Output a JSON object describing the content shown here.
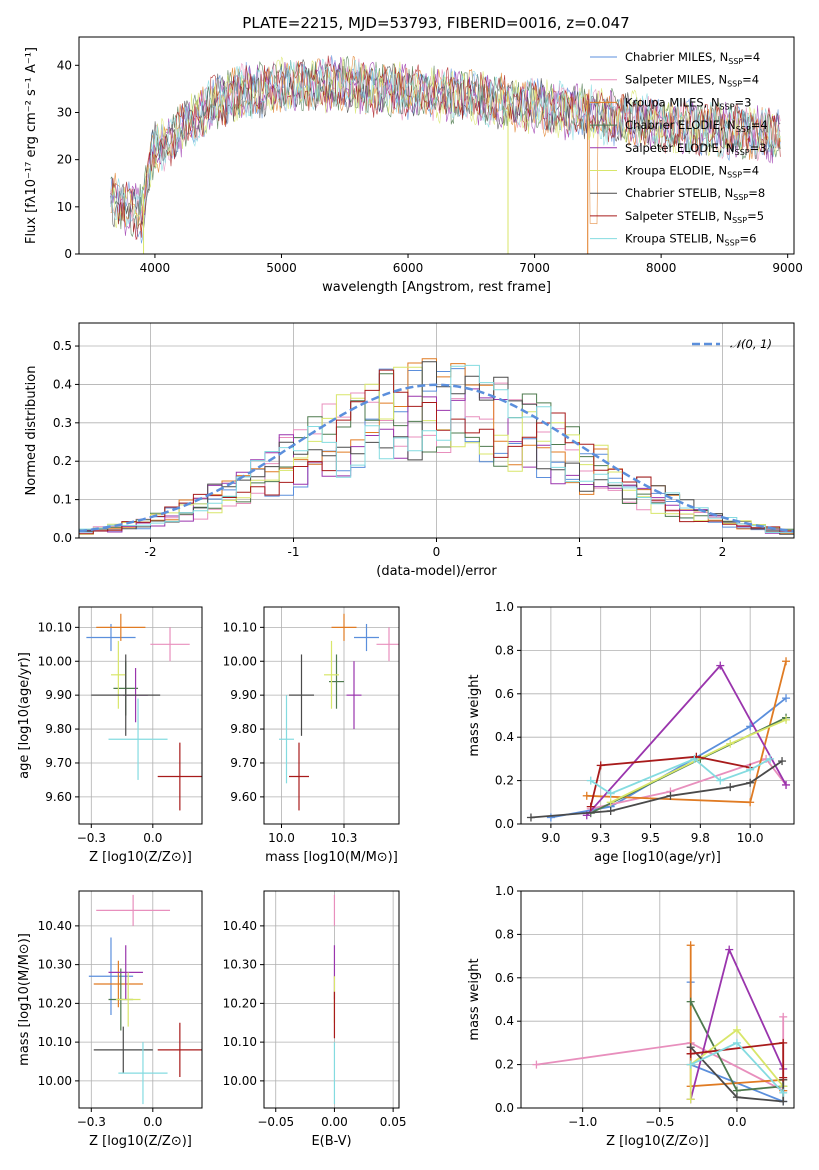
{
  "colors": {
    "Chabrier MILES": "#5b8fdc",
    "Salpeter MILES": "#e88fbd",
    "Kroupa MILES": "#e07b23",
    "Chabrier ELODIE": "#4e7a4e",
    "Salpeter ELODIE": "#9a35ad",
    "Kroupa ELODIE": "#d8e66a",
    "Chabrier STELIB": "#4a4a4a",
    "Salpeter STELIB": "#a81b1b",
    "Kroupa STELIB": "#84dbe0"
  },
  "chart_data": [
    {
      "id": "spectrum",
      "type": "line",
      "title": "PLATE=2215, MJD=53793, FIBERID=0016, z=0.047",
      "xlabel": "wavelength [Angstrom, rest frame]",
      "ylabel": "Flux [fλ10⁻¹⁷ erg cm⁻² s⁻¹ A⁻¹]",
      "xlim": [
        3400,
        9050
      ],
      "ylim": [
        0,
        46
      ],
      "xticks": [
        4000,
        5000,
        6000,
        7000,
        8000,
        9000
      ],
      "yticks": [
        0,
        10,
        20,
        30,
        40
      ],
      "grid": false,
      "legend_position": "top-right",
      "continuum": {
        "x": [
          3650,
          3700,
          3800,
          3900,
          3950,
          4000,
          4100,
          4200,
          4300,
          4400,
          4500,
          4600,
          4700,
          4800,
          4900,
          5000,
          5100,
          5200,
          5300,
          5400,
          5500,
          5600,
          5800,
          6000,
          6200,
          6400,
          6600,
          6800,
          7000,
          7200,
          7400,
          7500,
          7600,
          7800,
          8000,
          8200,
          8400,
          8600,
          8800,
          9000
        ],
        "y": [
          16,
          13,
          12,
          11,
          20,
          25,
          26,
          29,
          31,
          33,
          35,
          36,
          37,
          37,
          37.5,
          38,
          38.5,
          38,
          38.5,
          38.5,
          38.5,
          38,
          37.5,
          37,
          36.5,
          36,
          35.5,
          34.5,
          34,
          33,
          32.5,
          32,
          31.5,
          31,
          30,
          29.5,
          29,
          28.5,
          28,
          27.5
        ]
      },
      "dropouts": [
        {
          "series": "Kroupa ELODIE",
          "x": 3910,
          "y": 0
        },
        {
          "series": "Kroupa ELODIE",
          "x": 6790,
          "y": 0
        },
        {
          "series": "Kroupa MILES",
          "x": 7420,
          "y": 0
        }
      ],
      "series": [
        {
          "name": "Chabrier MILES, N_SSP=4",
          "label": "Chabrier MILES",
          "nssp": "4"
        },
        {
          "name": "Salpeter MILES, N_SSP=4",
          "label": "Salpeter MILES",
          "nssp": "4"
        },
        {
          "name": "Kroupa MILES, N_SSP=3",
          "label": "Kroupa MILES",
          "nssp": "3"
        },
        {
          "name": "Chabrier ELODIE, N_SSP=4",
          "label": "Chabrier ELODIE",
          "nssp": "4"
        },
        {
          "name": "Salpeter ELODIE, N_SSP=3",
          "label": "Salpeter ELODIE",
          "nssp": "3"
        },
        {
          "name": "Kroupa ELODIE, N_SSP=4",
          "label": "Kroupa ELODIE",
          "nssp": "4"
        },
        {
          "name": "Chabrier STELIB, N_SSP=8",
          "label": "Chabrier STELIB",
          "nssp": "8"
        },
        {
          "name": "Salpeter STELIB, N_SSP=5",
          "label": "Salpeter STELIB",
          "nssp": "5"
        },
        {
          "name": "Kroupa STELIB, N_SSP=6",
          "label": "Kroupa STELIB",
          "nssp": "6"
        }
      ]
    },
    {
      "id": "residuals",
      "type": "histogram",
      "xlabel": "(data-model)/error",
      "ylabel": "Normed distribution",
      "xlim": [
        -2.5,
        2.5
      ],
      "ylim": [
        0,
        0.56
      ],
      "xticks": [
        -2,
        -1,
        0,
        1,
        2
      ],
      "yticks": [
        0.0,
        0.1,
        0.2,
        0.3,
        0.4,
        0.5
      ],
      "grid": true,
      "legend_position": "top-right",
      "legend": "𝒩(0, 1)",
      "bin_width": 0.1
    },
    {
      "id": "z-age",
      "type": "errorbar",
      "xlabel": "Z [log10(Z/Z⊙)]",
      "ylabel": "age  [log10(age/yr)]",
      "xlim": [
        -0.3,
        0.2
      ],
      "ylim": [
        9.52,
        10.16
      ],
      "xticks": [
        -0.25,
        0.0
      ],
      "yticks": [
        9.6,
        9.7,
        9.8,
        9.9,
        10.0,
        10.1
      ],
      "grid": true,
      "points": [
        {
          "series": "Chabrier MILES",
          "x": -0.17,
          "xerr": 0.1,
          "y": 10.07,
          "yerr": 0.04
        },
        {
          "series": "Salpeter MILES",
          "x": 0.07,
          "xerr": 0.08,
          "y": 10.05,
          "yerr": 0.05
        },
        {
          "series": "Kroupa MILES",
          "x": -0.13,
          "xerr": 0.1,
          "y": 10.1,
          "yerr": 0.04
        },
        {
          "series": "Chabrier ELODIE",
          "x": -0.11,
          "xerr": 0.05,
          "y": 9.92,
          "yerr": 0.08
        },
        {
          "series": "Salpeter ELODIE",
          "x": -0.07,
          "xerr": 0.05,
          "y": 9.9,
          "yerr": 0.08
        },
        {
          "series": "Kroupa ELODIE",
          "x": -0.14,
          "xerr": 0.03,
          "y": 9.96,
          "yerr": 0.1
        },
        {
          "series": "Chabrier STELIB",
          "x": -0.11,
          "xerr": 0.14,
          "y": 9.9,
          "yerr": 0.12
        },
        {
          "series": "Salpeter STELIB",
          "x": 0.11,
          "xerr": 0.09,
          "y": 9.66,
          "yerr": 0.1
        },
        {
          "series": "Kroupa STELIB",
          "x": -0.06,
          "xerr": 0.12,
          "y": 9.77,
          "yerr": 0.12
        }
      ]
    },
    {
      "id": "mass-age",
      "type": "errorbar",
      "xlabel": "mass [log10(M/M⊙)]",
      "ylabel": "",
      "xlim": [
        9.93,
        10.47
      ],
      "ylim": [
        9.52,
        10.16
      ],
      "xticks": [
        10.0,
        10.25
      ],
      "yticks": [
        9.6,
        9.7,
        9.8,
        9.9,
        10.0,
        10.1
      ],
      "grid": true,
      "points": [
        {
          "series": "Chabrier MILES",
          "x": 10.34,
          "xerr": 0.05,
          "y": 10.07,
          "yerr": 0.04
        },
        {
          "series": "Salpeter MILES",
          "x": 10.43,
          "xerr": 0.05,
          "y": 10.05,
          "yerr": 0.05
        },
        {
          "series": "Kroupa MILES",
          "x": 10.25,
          "xerr": 0.05,
          "y": 10.1,
          "yerr": 0.04
        },
        {
          "series": "Chabrier ELODIE",
          "x": 10.22,
          "xerr": 0.03,
          "y": 9.94,
          "yerr": 0.08
        },
        {
          "series": "Salpeter ELODIE",
          "x": 10.29,
          "xerr": 0.03,
          "y": 9.9,
          "yerr": 0.1
        },
        {
          "series": "Kroupa ELODIE",
          "x": 10.2,
          "xerr": 0.03,
          "y": 9.96,
          "yerr": 0.1
        },
        {
          "series": "Chabrier STELIB",
          "x": 10.08,
          "xerr": 0.05,
          "y": 9.9,
          "yerr": 0.12
        },
        {
          "series": "Salpeter STELIB",
          "x": 10.07,
          "xerr": 0.04,
          "y": 9.66,
          "yerr": 0.1
        },
        {
          "series": "Kroupa STELIB",
          "x": 10.02,
          "xerr": 0.03,
          "y": 9.77,
          "yerr": 0.13
        }
      ]
    },
    {
      "id": "age-weight",
      "type": "line",
      "xlabel": "age  [log10(age/yr)]",
      "ylabel": "mass weight",
      "xlim": [
        8.85,
        10.22
      ],
      "ylim": [
        0,
        1
      ],
      "xticks": [
        9.0,
        9.25,
        9.5,
        9.75,
        10.0
      ],
      "yticks": [
        0.0,
        0.2,
        0.4,
        0.6,
        0.8,
        1.0
      ],
      "grid": true,
      "series": [
        {
          "name": "Chabrier MILES",
          "x": [
            9.0,
            9.3,
            10.0,
            10.18
          ],
          "y": [
            0.03,
            0.08,
            0.45,
            0.58
          ]
        },
        {
          "name": "Salpeter MILES",
          "x": [
            9.2,
            9.6,
            10.08,
            10.18
          ],
          "y": [
            0.07,
            0.15,
            0.3,
            0.18
          ]
        },
        {
          "name": "Kroupa MILES",
          "x": [
            9.18,
            10.0,
            10.18
          ],
          "y": [
            0.13,
            0.1,
            0.75
          ]
        },
        {
          "name": "Chabrier ELODIE",
          "x": [
            9.2,
            9.75,
            10.18
          ],
          "y": [
            0.05,
            0.3,
            0.49
          ]
        },
        {
          "name": "Salpeter ELODIE",
          "x": [
            9.18,
            9.85,
            10.18
          ],
          "y": [
            0.04,
            0.73,
            0.18
          ]
        },
        {
          "name": "Kroupa ELODIE",
          "x": [
            9.3,
            9.9,
            10.18
          ],
          "y": [
            0.1,
            0.37,
            0.48
          ]
        },
        {
          "name": "Chabrier STELIB",
          "x": [
            8.9,
            9.3,
            9.6,
            9.9,
            10.0,
            10.16
          ],
          "y": [
            0.03,
            0.06,
            0.13,
            0.17,
            0.19,
            0.29
          ]
        },
        {
          "name": "Salpeter STELIB",
          "x": [
            9.2,
            9.25,
            9.73,
            10.0
          ],
          "y": [
            0.08,
            0.27,
            0.31,
            0.26
          ]
        },
        {
          "name": "Kroupa STELIB",
          "x": [
            9.2,
            9.3,
            9.72,
            9.85,
            10.0,
            10.1
          ],
          "y": [
            0.2,
            0.14,
            0.3,
            0.2,
            0.25,
            0.3
          ]
        }
      ]
    },
    {
      "id": "z-mass",
      "type": "errorbar",
      "xlabel": "Z [log10(Z/Z⊙)]",
      "ylabel": "mass [log10(M/M⊙)]",
      "xlim": [
        -0.3,
        0.2
      ],
      "ylim": [
        9.93,
        10.49
      ],
      "xticks": [
        -0.25,
        0.0
      ],
      "yticks": [
        10.0,
        10.1,
        10.2,
        10.3,
        10.4
      ],
      "grid": true,
      "points": [
        {
          "series": "Chabrier MILES",
          "x": -0.17,
          "xerr": 0.09,
          "y": 10.27,
          "yerr": 0.1
        },
        {
          "series": "Salpeter MILES",
          "x": -0.08,
          "xerr": 0.15,
          "y": 10.44,
          "yerr": 0.04
        },
        {
          "series": "Kroupa MILES",
          "x": -0.14,
          "xerr": 0.1,
          "y": 10.25,
          "yerr": 0.06
        },
        {
          "series": "Chabrier ELODIE",
          "x": -0.13,
          "xerr": 0.05,
          "y": 10.21,
          "yerr": 0.08
        },
        {
          "series": "Salpeter ELODIE",
          "x": -0.11,
          "xerr": 0.07,
          "y": 10.28,
          "yerr": 0.07
        },
        {
          "series": "Kroupa ELODIE",
          "x": -0.1,
          "xerr": 0.05,
          "y": 10.21,
          "yerr": 0.07
        },
        {
          "series": "Chabrier STELIB",
          "x": -0.12,
          "xerr": 0.12,
          "y": 10.08,
          "yerr": 0.06
        },
        {
          "series": "Salpeter STELIB",
          "x": 0.11,
          "xerr": 0.09,
          "y": 10.08,
          "yerr": 0.07
        },
        {
          "series": "Kroupa STELIB",
          "x": -0.04,
          "xerr": 0.1,
          "y": 10.02,
          "yerr": 0.08
        }
      ]
    },
    {
      "id": "ebv",
      "type": "errorbar",
      "xlabel": "E(B-V)",
      "ylabel": "",
      "xlim": [
        -0.06,
        0.055
      ],
      "ylim": [
        9.93,
        10.49
      ],
      "xticks": [
        -0.05,
        0.0,
        0.05
      ],
      "yticks": [
        10.0,
        10.1,
        10.2,
        10.3,
        10.4
      ],
      "grid": true,
      "points": [
        {
          "series": "Salpeter MILES",
          "x": 0.0,
          "xerr": 0.0,
          "y": 10.44,
          "yerr": 0.04
        },
        {
          "series": "Salpeter ELODIE",
          "x": 0.0,
          "xerr": 0.0,
          "y": 10.28,
          "yerr": 0.07
        },
        {
          "series": "Kroupa ELODIE",
          "x": 0.0,
          "xerr": 0.0,
          "y": 10.21,
          "yerr": 0.06
        },
        {
          "series": "Salpeter STELIB",
          "x": 0.0,
          "xerr": 0.0,
          "y": 10.17,
          "yerr": 0.06
        },
        {
          "series": "Kroupa STELIB",
          "x": 0.0,
          "xerr": 0.0,
          "y": 10.02,
          "yerr": 0.08
        }
      ]
    },
    {
      "id": "z-weight",
      "type": "line",
      "xlabel": "Z [log10(Z/Z⊙)]",
      "ylabel": "mass weight",
      "xlim": [
        -1.4,
        0.37
      ],
      "ylim": [
        0,
        1
      ],
      "xticks": [
        -1.0,
        -0.5,
        0.0
      ],
      "yticks": [
        0.0,
        0.2,
        0.4,
        0.6,
        0.8,
        1.0
      ],
      "grid": true,
      "series": [
        {
          "name": "Chabrier MILES",
          "x": [
            -0.3,
            -0.3,
            0.3
          ],
          "y": [
            0.58,
            0.2,
            0.03
          ]
        },
        {
          "name": "Salpeter MILES",
          "x": [
            -1.3,
            -0.3,
            0.3,
            0.3
          ],
          "y": [
            0.2,
            0.3,
            0.08,
            0.42
          ]
        },
        {
          "name": "Kroupa MILES",
          "x": [
            -0.3,
            -0.3,
            0.3,
            0.3
          ],
          "y": [
            0.75,
            0.1,
            0.13,
            0.08
          ]
        },
        {
          "name": "Chabrier ELODIE",
          "x": [
            -0.3,
            0.0,
            0.3
          ],
          "y": [
            0.49,
            0.08,
            0.1
          ]
        },
        {
          "name": "Salpeter ELODIE",
          "x": [
            -0.3,
            -0.05,
            0.3
          ],
          "y": [
            0.04,
            0.73,
            0.18
          ]
        },
        {
          "name": "Kroupa ELODIE",
          "x": [
            -0.3,
            -0.3,
            0.0,
            0.3
          ],
          "y": [
            0.04,
            0.2,
            0.36,
            0.1
          ]
        },
        {
          "name": "Chabrier STELIB",
          "x": [
            -0.3,
            0.0,
            0.3,
            0.3
          ],
          "y": [
            0.28,
            0.05,
            0.03,
            0.13
          ]
        },
        {
          "name": "Salpeter STELIB",
          "x": [
            -0.3,
            -0.3,
            0.3,
            0.3
          ],
          "y": [
            0.25,
            0.25,
            0.3,
            0.14
          ]
        },
        {
          "name": "Kroupa STELIB",
          "x": [
            -0.3,
            0.0,
            0.3
          ],
          "y": [
            0.2,
            0.3,
            0.07
          ]
        }
      ]
    }
  ]
}
